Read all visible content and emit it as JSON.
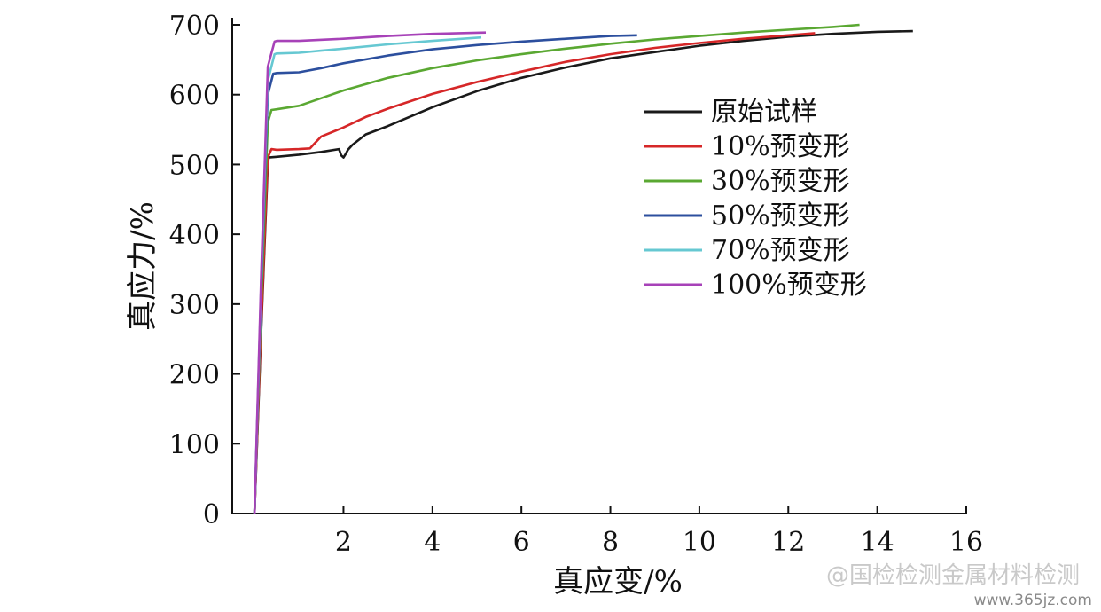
{
  "chart_data": {
    "type": "line",
    "title": "",
    "xlabel": "真应变/%",
    "ylabel": "真应力/%",
    "xlim": [
      -0.5,
      16
    ],
    "ylim": [
      0,
      700
    ],
    "xticks": [
      2,
      4,
      6,
      8,
      10,
      12,
      14,
      16
    ],
    "yticks": [
      0,
      100,
      200,
      300,
      400,
      500,
      600,
      700
    ],
    "grid": false,
    "legend_position": "right",
    "series": [
      {
        "name": "原始试样",
        "color": "#1a1a1a",
        "x": [
          0,
          0.15,
          0.3,
          0.32,
          0.5,
          1.0,
          1.5,
          1.9,
          1.95,
          2.0,
          2.05,
          2.1,
          2.2,
          2.5,
          3.0,
          4.0,
          5.0,
          6.0,
          7.0,
          8.0,
          9.0,
          10.0,
          11.0,
          12.0,
          13.0,
          14.0,
          14.8
        ],
        "y": [
          0,
          260,
          500,
          510,
          511,
          514,
          518,
          522,
          513,
          510,
          515,
          521,
          528,
          543,
          555,
          582,
          605,
          624,
          639,
          652,
          661,
          670,
          677,
          683,
          687,
          690,
          691
        ]
      },
      {
        "name": "10%预变形",
        "color": "#d62728",
        "x": [
          0,
          0.15,
          0.3,
          0.38,
          0.5,
          1.0,
          1.25,
          1.35,
          1.5,
          2.0,
          2.5,
          3.0,
          4.0,
          5.0,
          6.0,
          7.0,
          8.0,
          9.0,
          10.0,
          11.0,
          12.0,
          12.6
        ],
        "y": [
          0,
          270,
          510,
          522,
          521,
          522,
          523,
          530,
          540,
          553,
          568,
          580,
          601,
          618,
          633,
          647,
          658,
          667,
          674,
          680,
          685,
          688
        ]
      },
      {
        "name": "30%预变形",
        "color": "#5aa832",
        "x": [
          0,
          0.15,
          0.3,
          0.38,
          0.5,
          1.0,
          1.5,
          2.0,
          3.0,
          4.0,
          5.0,
          6.0,
          7.0,
          8.0,
          9.0,
          10.0,
          11.0,
          12.0,
          13.0,
          13.6
        ],
        "y": [
          0,
          300,
          560,
          578,
          579,
          584,
          595,
          606,
          624,
          638,
          649,
          658,
          666,
          673,
          679,
          684,
          689,
          693,
          697,
          700
        ]
      },
      {
        "name": "50%预变形",
        "color": "#2c4f9e",
        "x": [
          0,
          0.15,
          0.3,
          0.42,
          0.5,
          1.0,
          1.5,
          2.0,
          3.0,
          4.0,
          5.0,
          6.0,
          7.0,
          8.0,
          8.6
        ],
        "y": [
          0,
          320,
          600,
          630,
          631,
          632,
          638,
          645,
          656,
          665,
          671,
          676,
          680,
          684,
          685
        ]
      },
      {
        "name": "70%预变形",
        "color": "#66c8d2",
        "x": [
          0,
          0.15,
          0.3,
          0.45,
          0.5,
          1.0,
          1.5,
          2.0,
          3.0,
          4.0,
          5.1
        ],
        "y": [
          0,
          330,
          620,
          658,
          659,
          660,
          663,
          666,
          672,
          677,
          682
        ]
      },
      {
        "name": "100%预变形",
        "color": "#a742b8",
        "x": [
          0,
          0.15,
          0.3,
          0.45,
          0.5,
          1.0,
          2.0,
          3.0,
          4.0,
          5.2
        ],
        "y": [
          0,
          340,
          640,
          676,
          677,
          677,
          680,
          684,
          687,
          689
        ]
      }
    ]
  },
  "watermark": {
    "text": "@国检检测金属材料检测",
    "url": "www.365jz.com"
  }
}
